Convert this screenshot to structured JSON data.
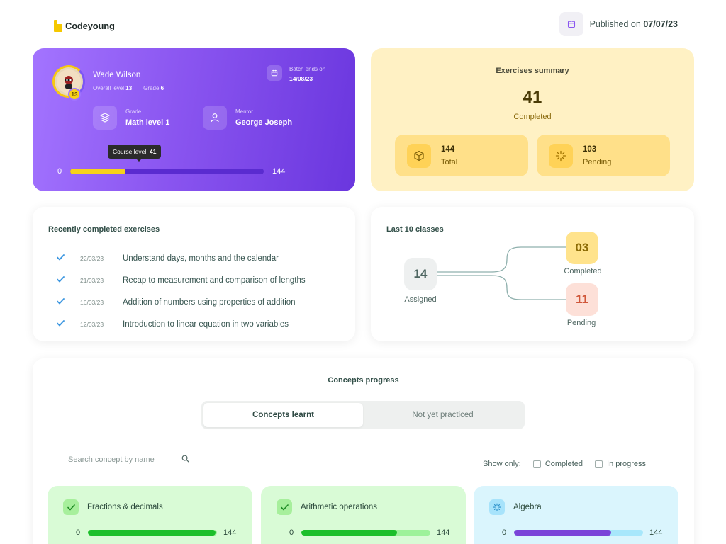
{
  "header": {
    "logo_text": "Codeyoung",
    "published_label": "Published on",
    "published_date": "07/07/23"
  },
  "profile": {
    "name": "Wade Wilson",
    "overall_level_label": "Overall level",
    "overall_level": "13",
    "grade_label": "Grade",
    "grade": "6",
    "badge": "13",
    "batch_label": "Batch ends on",
    "batch_date": "14/08/23",
    "grade_item_label": "Grade",
    "grade_item_value": "Math level 1",
    "mentor_label": "Mentor",
    "mentor_value": "George Joseph",
    "tooltip_label": "Course level:",
    "tooltip_value": "41",
    "progress_min": "0",
    "progress_max": "144",
    "progress_value": 41,
    "progress_total": 144
  },
  "summary": {
    "title": "Exercises summary",
    "completed_count": "41",
    "completed_label": "Completed",
    "total_count": "144",
    "total_label": "Total",
    "pending_count": "103",
    "pending_label": "Pending"
  },
  "recent": {
    "title": "Recently completed exercises",
    "items": [
      {
        "date": "22/03/23",
        "title": "Understand days, months and the calendar"
      },
      {
        "date": "21/03/23",
        "title": "Recap to measurement and comparison of lengths"
      },
      {
        "date": "16/03/23",
        "title": "Addition of numbers using properties of addition"
      },
      {
        "date": "12/03/23",
        "title": "Introduction to linear equation in two variables"
      }
    ]
  },
  "classes": {
    "title": "Last 10 classes",
    "assigned_count": "14",
    "assigned_label": "Assigned",
    "completed_count": "03",
    "completed_label": "Completed",
    "pending_count": "11",
    "pending_label": "Pending"
  },
  "concepts": {
    "title": "Concepts progress",
    "tabs": [
      {
        "label": "Concepts learnt",
        "active": true
      },
      {
        "label": "Not yet practiced",
        "active": false
      }
    ],
    "search_placeholder": "Search concept by name",
    "show_only_label": "Show only:",
    "filter_completed": "Completed",
    "filter_in_progress": "In progress",
    "cards": [
      {
        "name": "Fractions & decimals",
        "min": "0",
        "max": "144",
        "progress": 0.99,
        "bg": "#d9fbd6",
        "track": "#9df29a",
        "fill": "#1cbf2b",
        "icon_bg": "#a7ef9c",
        "icon_color": "#1d8a23",
        "icon": "check-icon"
      },
      {
        "name": "Arithmetic operations",
        "min": "0",
        "max": "144",
        "progress": 0.74,
        "bg": "#d9fbd6",
        "track": "#9df29a",
        "fill": "#1cbf2b",
        "icon_bg": "#a7ef9c",
        "icon_color": "#1d8a23",
        "icon": "check-icon"
      },
      {
        "name": "Algebra",
        "min": "0",
        "max": "144",
        "progress": 0.75,
        "bg": "#daf5fd",
        "track": "#a7e7fb",
        "fill": "#7a44d8",
        "icon_bg": "#a7e3fb",
        "icon_color": "#2a8fc9",
        "icon": "loading-icon"
      }
    ]
  },
  "colors": {
    "accent_purple": "#8a55f0",
    "accent_yellow": "#f7d21a",
    "success_green": "#1cbf2b",
    "check_blue": "#3b96e0"
  }
}
